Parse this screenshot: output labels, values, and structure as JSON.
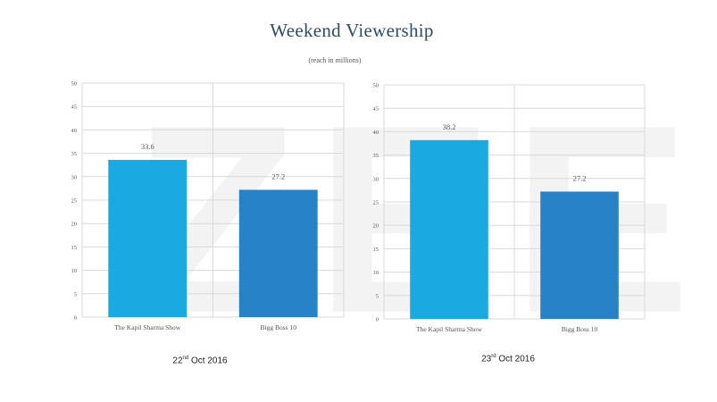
{
  "title": "Weekend Viewership",
  "subtitle": "(reach in millions)",
  "colors": {
    "bar_left": "#1ba9e1",
    "bar_right": "#2882c6",
    "grid": "#d9d9d9",
    "label": "#555555"
  },
  "chart_data": [
    {
      "type": "bar",
      "title": "",
      "caption_day": "22",
      "caption_suffix": "nd",
      "caption_rest": "Oct 2016",
      "categories": [
        "The Kapil Sharma Show",
        "Bigg Boss 10"
      ],
      "values": [
        33.6,
        27.2
      ],
      "data_labels": [
        "33.6",
        "27.2"
      ],
      "ylim": [
        0,
        50
      ],
      "yticks": [
        "0",
        "5",
        "10",
        "15",
        "20",
        "25",
        "30",
        "35",
        "40",
        "45",
        "50"
      ],
      "grid": true,
      "legend": "none"
    },
    {
      "type": "bar",
      "title": "",
      "caption_day": "23",
      "caption_suffix": "rd",
      "caption_rest": "Oct 2016",
      "categories": [
        "The Kapil Sharma Show",
        "Bigg Boss 10"
      ],
      "values": [
        38.2,
        27.2
      ],
      "data_labels": [
        "38.2",
        "27.2"
      ],
      "ylim": [
        0,
        50
      ],
      "yticks": [
        "0",
        "5",
        "10",
        "15",
        "20",
        "25",
        "30",
        "35",
        "40",
        "45",
        "50"
      ],
      "grid": true,
      "legend": "none"
    }
  ]
}
